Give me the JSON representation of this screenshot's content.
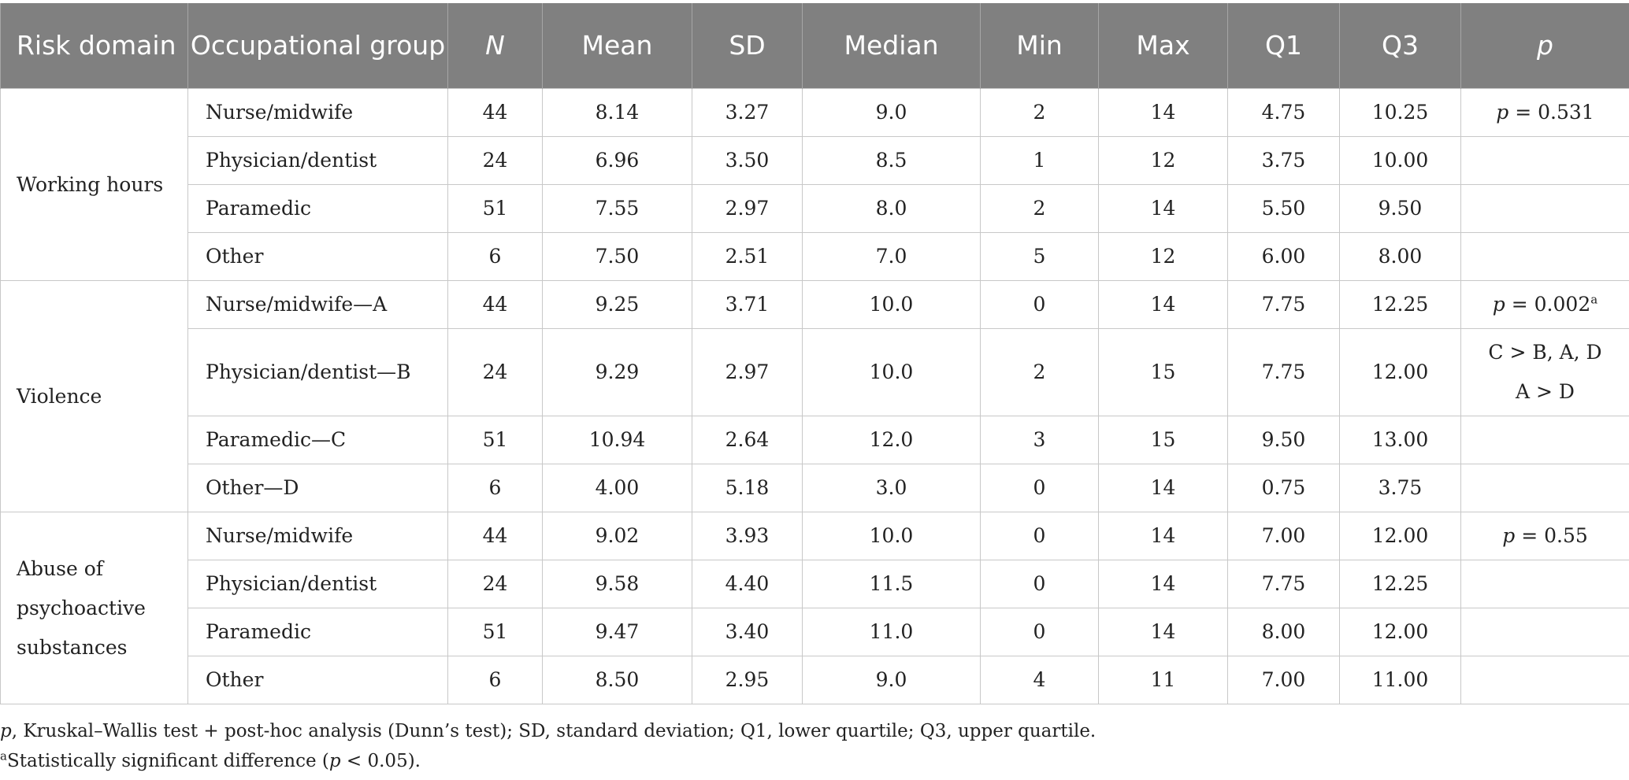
{
  "table": {
    "headers": {
      "risk_domain": "Risk domain",
      "group": "Occupational group",
      "n": "N",
      "mean": "Mean",
      "sd": "SD",
      "median": "Median",
      "min": "Min",
      "max": "Max",
      "q1": "Q1",
      "q3": "Q3",
      "p": "p"
    },
    "domains": [
      {
        "name": "Working hours",
        "rows": [
          {
            "group": "Nurse/midwife",
            "n": "44",
            "mean": "8.14",
            "sd": "3.27",
            "median": "9.0",
            "min": "2",
            "max": "14",
            "q1": "4.75",
            "q3": "10.25",
            "p_label": "p",
            "p_value": " = 0.531"
          },
          {
            "group": "Physician/dentist",
            "n": "24",
            "mean": "6.96",
            "sd": "3.50",
            "median": "8.5",
            "min": "1",
            "max": "12",
            "q1": "3.75",
            "q3": "10.00"
          },
          {
            "group": "Paramedic",
            "n": "51",
            "mean": "7.55",
            "sd": "2.97",
            "median": "8.0",
            "min": "2",
            "max": "14",
            "q1": "5.50",
            "q3": "9.50"
          },
          {
            "group": "Other",
            "n": "6",
            "mean": "7.50",
            "sd": "2.51",
            "median": "7.0",
            "min": "5",
            "max": "12",
            "q1": "6.00",
            "q3": "8.00"
          }
        ]
      },
      {
        "name": "Violence",
        "rows": [
          {
            "group": "Nurse/midwife—A",
            "n": "44",
            "mean": "9.25",
            "sd": "3.71",
            "median": "10.0",
            "min": "0",
            "max": "14",
            "q1": "7.75",
            "q3": "12.25",
            "p_label": "p",
            "p_value": " = 0.002",
            "p_sup": "a"
          },
          {
            "group": "Physician/dentist—B",
            "n": "24",
            "mean": "9.29",
            "sd": "2.97",
            "median": "10.0",
            "min": "2",
            "max": "15",
            "q1": "7.75",
            "q3": "12.00",
            "p_line1": "C > B, A, D",
            "p_line2": "A > D"
          },
          {
            "group": "Paramedic—C",
            "n": "51",
            "mean": "10.94",
            "sd": "2.64",
            "median": "12.0",
            "min": "3",
            "max": "15",
            "q1": "9.50",
            "q3": "13.00"
          },
          {
            "group": "Other—D",
            "n": "6",
            "mean": "4.00",
            "sd": "5.18",
            "median": "3.0",
            "min": "0",
            "max": "14",
            "q1": "0.75",
            "q3": "3.75"
          }
        ]
      },
      {
        "name_lines": [
          "Abuse of",
          "psychoactive",
          "substances"
        ],
        "rows": [
          {
            "group": "Nurse/midwife",
            "n": "44",
            "mean": "9.02",
            "sd": "3.93",
            "median": "10.0",
            "min": "0",
            "max": "14",
            "q1": "7.00",
            "q3": "12.00",
            "p_label": "p",
            "p_value": " = 0.55"
          },
          {
            "group": "Physician/dentist",
            "n": "24",
            "mean": "9.58",
            "sd": "4.40",
            "median": "11.5",
            "min": "0",
            "max": "14",
            "q1": "7.75",
            "q3": "12.25"
          },
          {
            "group": "Paramedic",
            "n": "51",
            "mean": "9.47",
            "sd": "3.40",
            "median": "11.0",
            "min": "0",
            "max": "14",
            "q1": "8.00",
            "q3": "12.00"
          },
          {
            "group": "Other",
            "n": "6",
            "mean": "8.50",
            "sd": "2.95",
            "median": "9.0",
            "min": "4",
            "max": "11",
            "q1": "7.00",
            "q3": "11.00"
          }
        ]
      }
    ]
  },
  "footnotes": {
    "line1_p": "p",
    "line1_rest": ", Kruskal–Wallis test + post-hoc analysis (Dunn’s test); SD, standard deviation; Q1, lower quartile; Q3, upper quartile.",
    "line2_sup": "a",
    "line2_pre": "Statistically significant difference (",
    "line2_p": "p",
    "line2_post": " < 0.05)."
  }
}
